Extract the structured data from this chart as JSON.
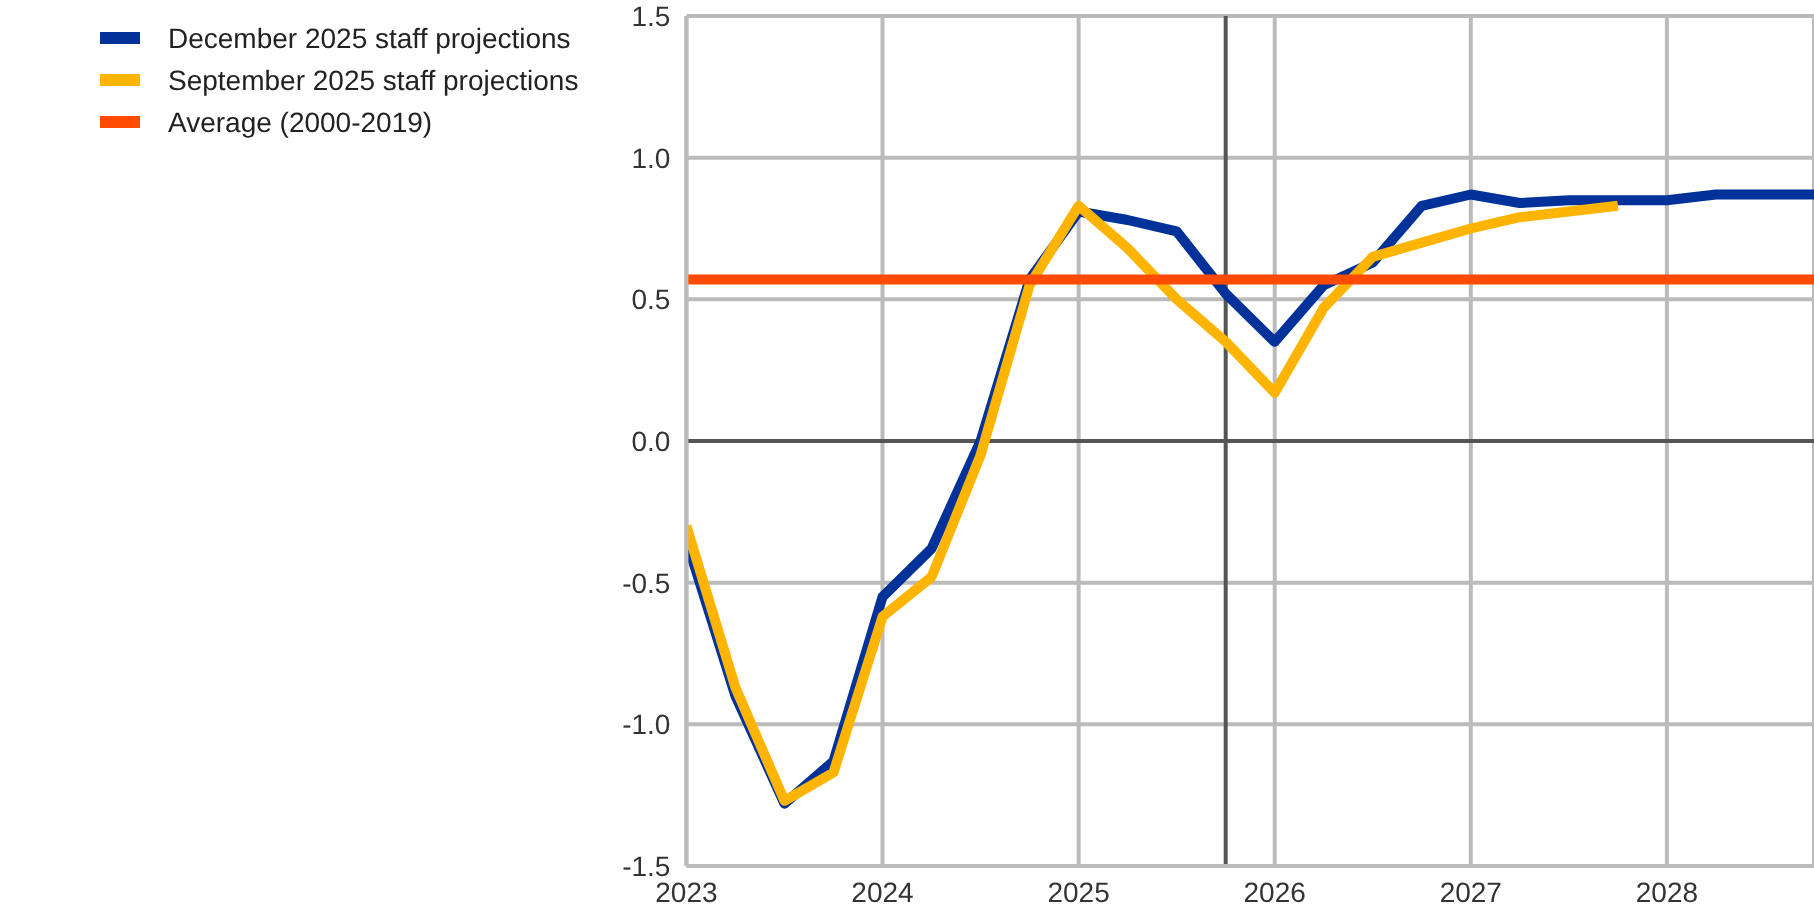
{
  "chart_data": {
    "type": "line",
    "xlim": [
      2023,
      2028.75
    ],
    "xticks": [
      2023,
      2024,
      2025,
      2026,
      2027,
      2028
    ],
    "ylim": [
      -1.5,
      1.5
    ],
    "yticks": [
      {
        "value": -1.5,
        "label": "-1.5"
      },
      {
        "value": -1,
        "label": "-1.0"
      },
      {
        "value": -0.5,
        "label": "-0.5"
      },
      {
        "value": 0,
        "label": "0.0"
      },
      {
        "value": 0.5,
        "label": "0.5"
      },
      {
        "value": 1,
        "label": "1.0"
      },
      {
        "value": 1.5,
        "label": "1.5"
      }
    ],
    "grid": true,
    "legend": "top left",
    "marker": "none",
    "line_style": "solid",
    "series": [
      {
        "name": "December 2025 staff projections",
        "color": "#003299",
        "x": [
          2023,
          2023.25,
          2023.5,
          2023.75,
          2024,
          2024.25,
          2024.5,
          2024.75,
          2025,
          2025.25,
          2025.5,
          2025.75,
          2026,
          2026.25,
          2026.5,
          2026.75,
          2027,
          2027.25,
          2027.5,
          2027.75,
          2028,
          2028.25,
          2028.5,
          2028.75
        ],
        "values": [
          -0.35,
          -0.9,
          -1.28,
          -1.13,
          -0.55,
          -0.38,
          0.0,
          0.57,
          0.81,
          0.78,
          0.74,
          0.52,
          0.35,
          0.55,
          0.63,
          0.83,
          0.87,
          0.84,
          0.85,
          0.85,
          0.85,
          0.87,
          0.87,
          0.87
        ]
      },
      {
        "name": "September 2025 staff projections",
        "color": "#ffb400",
        "x": [
          2023,
          2023.25,
          2023.5,
          2023.75,
          2024,
          2024.25,
          2024.5,
          2024.75,
          2025,
          2025.25,
          2025.5,
          2025.75,
          2026,
          2026.25,
          2026.5,
          2026.75,
          2027,
          2027.25,
          2027.5,
          2027.75
        ],
        "values": [
          -0.3,
          -0.87,
          -1.27,
          -1.17,
          -0.62,
          -0.48,
          -0.05,
          0.55,
          0.83,
          0.68,
          0.5,
          0.35,
          0.17,
          0.47,
          0.65,
          0.7,
          0.75,
          0.79,
          0.81,
          0.83
        ]
      },
      {
        "name": "Average (2000-2019)",
        "color": "#ff4b00",
        "x": [
          2023,
          2028.75
        ],
        "values": [
          0.57,
          0.57
        ]
      }
    ],
    "ref_lines": [
      {
        "axis": "y",
        "value": 0,
        "color": "#555555"
      },
      {
        "axis": "x",
        "value": 2025.75,
        "color": "#555555"
      }
    ]
  }
}
